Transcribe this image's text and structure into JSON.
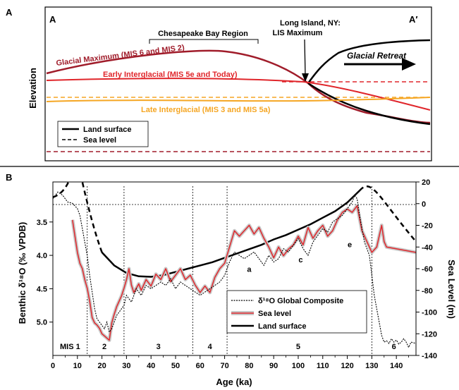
{
  "chart_data": [
    {
      "type": "diagram",
      "panel_label": "A",
      "left_label": "A",
      "right_label": "A′",
      "ylabel": "Elevation",
      "annotations": {
        "region": "Chesapeake Bay Region",
        "lis_line1": "Long Island, NY:",
        "lis_line2": "LIS Maximum",
        "retreat": "Glacial Retreat"
      },
      "profiles": [
        {
          "name": "Glacial Maximum (MIS 6 and MIS 2)",
          "color": "#a01c2a"
        },
        {
          "name": "Early Interglacial (MIS 5e and Today)",
          "color": "#e0262b"
        },
        {
          "name": "Late Interglacial (MIS 3 and MIS 5a)",
          "color": "#f5a623"
        }
      ],
      "legend": [
        {
          "label": "Land surface",
          "style": "solid"
        },
        {
          "label": "Sea level",
          "style": "dashed"
        }
      ]
    },
    {
      "type": "line",
      "panel_label": "B",
      "xlabel": "Age (ka)",
      "ylabel_left": "Benthic δ¹⁸O (‰ VPDB)",
      "ylabel_right": "Sea Level (m)",
      "xlim": [
        0,
        148
      ],
      "ylim_left": [
        5.5,
        2.9
      ],
      "ylim_right": [
        -140,
        20
      ],
      "x_ticks": [
        0,
        10,
        20,
        30,
        40,
        50,
        60,
        70,
        80,
        90,
        100,
        110,
        120,
        130,
        140
      ],
      "y_left_ticks": [
        "3.5",
        "4.0",
        "4.5",
        "5.0"
      ],
      "y_left_values": [
        3.5,
        4.0,
        4.5,
        5.0
      ],
      "y_right_ticks": [
        "20",
        "0",
        "-20",
        "-40",
        "-60",
        "-80",
        "-100",
        "-120",
        "-140"
      ],
      "y_right_values": [
        20,
        0,
        -20,
        -40,
        -60,
        -80,
        -100,
        -120,
        -140
      ],
      "mis_stages": [
        {
          "label": "MIS 1",
          "x": 7
        },
        {
          "label": "2",
          "x": 21
        },
        {
          "label": "3",
          "x": 43
        },
        {
          "label": "4",
          "x": 64
        },
        {
          "label": "5",
          "x": 100
        },
        {
          "label": "6",
          "x": 139
        }
      ],
      "mis_boundaries": [
        14,
        29,
        57,
        71,
        130
      ],
      "substage_labels": [
        {
          "label": "a",
          "x": 80,
          "y": -63
        },
        {
          "label": "c",
          "x": 101,
          "y": -54
        },
        {
          "label": "e",
          "x": 121,
          "y": -40
        }
      ],
      "legend": [
        {
          "label": "δ¹⁸O Global Composite",
          "style": "dotted"
        },
        {
          "label": "Sea level",
          "style": "red-band"
        },
        {
          "label": "Land surface",
          "style": "thick"
        }
      ],
      "series": [
        {
          "name": "δ¹⁸O Global Composite",
          "axis": "left",
          "x": [
            0,
            2,
            4,
            6,
            8,
            10,
            11,
            12,
            13,
            14,
            15,
            16,
            17,
            18,
            19,
            20,
            21,
            22,
            23,
            24,
            25,
            26,
            27,
            28,
            29,
            30,
            32,
            34,
            36,
            38,
            40,
            42,
            44,
            46,
            48,
            50,
            52,
            54,
            56,
            58,
            60,
            62,
            64,
            66,
            68,
            70,
            72,
            74,
            76,
            78,
            80,
            82,
            84,
            86,
            88,
            90,
            92,
            94,
            96,
            98,
            100,
            102,
            104,
            106,
            108,
            110,
            112,
            114,
            116,
            118,
            120,
            122,
            123,
            124,
            125,
            126,
            127,
            128,
            129,
            130,
            131,
            132,
            133,
            134,
            135,
            136,
            137,
            138,
            139,
            140,
            141,
            142,
            143,
            144,
            145,
            146,
            148
          ],
          "y": [
            3.15,
            3.05,
            3.1,
            3.2,
            3.22,
            3.3,
            3.4,
            3.6,
            3.8,
            4.0,
            4.3,
            4.55,
            4.8,
            4.95,
            5.0,
            5.05,
            5.1,
            5.0,
            5.15,
            5.1,
            5.0,
            4.9,
            4.85,
            4.8,
            4.75,
            4.6,
            4.7,
            4.5,
            4.6,
            4.45,
            4.5,
            4.45,
            4.4,
            4.45,
            4.35,
            4.5,
            4.4,
            4.45,
            4.5,
            4.55,
            4.6,
            4.55,
            4.5,
            4.45,
            4.4,
            4.3,
            4.1,
            3.95,
            4.0,
            4.05,
            4.0,
            3.95,
            4.05,
            4.15,
            4.0,
            4.1,
            4.05,
            3.9,
            3.95,
            3.85,
            3.75,
            3.9,
            4.0,
            3.8,
            3.7,
            3.6,
            3.65,
            3.5,
            3.45,
            3.4,
            3.3,
            3.2,
            3.1,
            3.15,
            3.4,
            3.6,
            3.8,
            3.9,
            4.0,
            4.3,
            4.6,
            4.8,
            5.0,
            5.2,
            5.3,
            5.28,
            5.32,
            5.25,
            5.3,
            5.27,
            5.33,
            5.3,
            5.25,
            5.3,
            5.38,
            5.3,
            5.32
          ]
        },
        {
          "name": "Sea level",
          "axis": "right",
          "x": [
            8,
            9,
            10,
            11,
            12,
            13,
            14,
            15,
            16,
            17,
            18,
            19,
            20,
            21,
            22,
            23,
            24,
            25,
            26,
            27,
            28,
            29,
            30,
            31,
            32,
            33,
            34,
            35,
            36,
            38,
            40,
            42,
            44,
            46,
            48,
            50,
            52,
            54,
            56,
            58,
            60,
            62,
            64,
            66,
            68,
            70,
            72,
            74,
            76,
            78,
            80,
            82,
            84,
            86,
            88,
            90,
            92,
            94,
            96,
            98,
            100,
            102,
            104,
            106,
            108,
            110,
            112,
            114,
            116,
            118,
            120,
            122,
            124,
            126,
            128,
            130,
            132,
            134,
            135,
            136,
            148
          ],
          "y": [
            -15,
            -30,
            -45,
            -55,
            -60,
            -70,
            -78,
            -90,
            -105,
            -110,
            -112,
            -115,
            -120,
            -122,
            -124,
            -126,
            -110,
            -102,
            -95,
            -90,
            -85,
            -78,
            -70,
            -60,
            -75,
            -82,
            -78,
            -74,
            -80,
            -70,
            -76,
            -65,
            -70,
            -60,
            -72,
            -66,
            -60,
            -70,
            -66,
            -75,
            -82,
            -76,
            -82,
            -68,
            -60,
            -55,
            -40,
            -25,
            -30,
            -25,
            -20,
            -28,
            -22,
            -32,
            -40,
            -50,
            -40,
            -48,
            -42,
            -38,
            -30,
            -38,
            -22,
            -32,
            -25,
            -20,
            -30,
            -25,
            -15,
            -8,
            -5,
            -8,
            -2,
            -25,
            -35,
            -45,
            -40,
            -20,
            -35,
            -40,
            -45
          ]
        },
        {
          "name": "Land surface",
          "axis": "right",
          "x": [
            20,
            25,
            30,
            35,
            40,
            45,
            50,
            55,
            60,
            65,
            70,
            75,
            80,
            85,
            90,
            95,
            100,
            105,
            110,
            115,
            120,
            125
          ],
          "y": [
            -45,
            -57,
            -64,
            -67,
            -67.5,
            -66,
            -63,
            -60,
            -57,
            -54,
            -50,
            -46,
            -42,
            -38,
            -33,
            -29,
            -24,
            -19,
            -13,
            -7,
            1,
            12
          ]
        }
      ]
    }
  ]
}
